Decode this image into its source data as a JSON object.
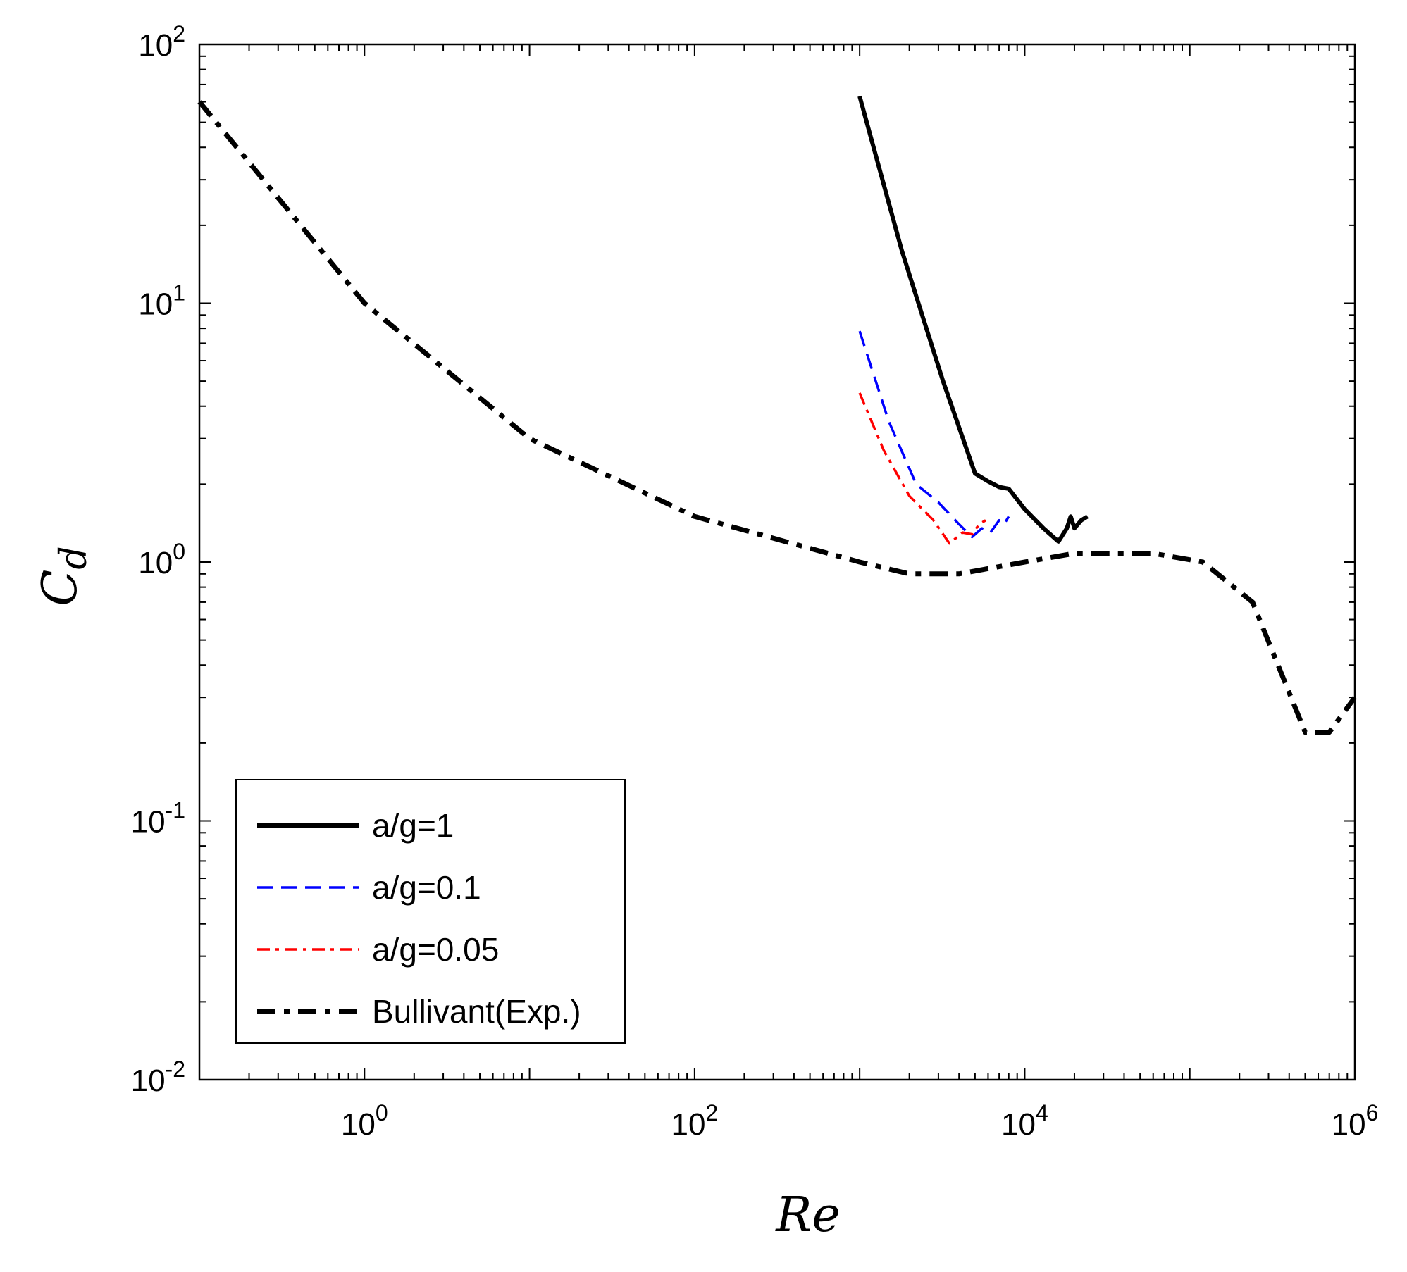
{
  "chart_data": {
    "type": "line",
    "title": "",
    "xlabel": "Re",
    "ylabel_base": "C",
    "ylabel_sub": "d",
    "xscale": "log",
    "yscale": "log",
    "xlim": [
      0.1,
      1000000
    ],
    "ylim": [
      0.01,
      100
    ],
    "grid": false,
    "legend_position": "bottom-left",
    "x_ticks": [
      {
        "value": 1,
        "base": "10",
        "exp": "0"
      },
      {
        "value": 100,
        "base": "10",
        "exp": "2"
      },
      {
        "value": 10000,
        "base": "10",
        "exp": "4"
      },
      {
        "value": 1000000,
        "base": "10",
        "exp": "6"
      }
    ],
    "y_ticks": [
      {
        "value": 0.01,
        "base": "10",
        "exp": "-2"
      },
      {
        "value": 0.1,
        "base": "10",
        "exp": "-1"
      },
      {
        "value": 1,
        "base": "10",
        "exp": "0"
      },
      {
        "value": 10,
        "base": "10",
        "exp": "1"
      },
      {
        "value": 100,
        "base": "10",
        "exp": "2"
      }
    ],
    "series": [
      {
        "name": "a/g=1",
        "color": "#000000",
        "style": "solid",
        "points": [
          [
            1000,
            63
          ],
          [
            1800,
            16
          ],
          [
            3200,
            5
          ],
          [
            5000,
            2.2
          ],
          [
            6000,
            2.05
          ],
          [
            7000,
            1.95
          ],
          [
            8000,
            1.92
          ],
          [
            10000,
            1.6
          ],
          [
            13000,
            1.35
          ],
          [
            16000,
            1.2
          ],
          [
            18000,
            1.35
          ],
          [
            19000,
            1.5
          ],
          [
            20000,
            1.35
          ],
          [
            22000,
            1.45
          ],
          [
            24000,
            1.5
          ]
        ]
      },
      {
        "name": "a/g=0.1",
        "color": "#0000ff",
        "style": "dashed",
        "points": [
          [
            1000,
            7.8
          ],
          [
            1500,
            3.5
          ],
          [
            2200,
            2.0
          ],
          [
            3000,
            1.7
          ],
          [
            4000,
            1.4
          ],
          [
            4800,
            1.25
          ],
          [
            5500,
            1.35
          ],
          [
            6200,
            1.3
          ],
          [
            7000,
            1.45
          ],
          [
            7500,
            1.4
          ],
          [
            8000,
            1.5
          ]
        ]
      },
      {
        "name": "a/g=0.05",
        "color": "#ff0000",
        "style": "dashdot",
        "points": [
          [
            1000,
            4.5
          ],
          [
            1400,
            2.7
          ],
          [
            2000,
            1.8
          ],
          [
            2800,
            1.45
          ],
          [
            3500,
            1.18
          ],
          [
            4200,
            1.3
          ],
          [
            4800,
            1.28
          ],
          [
            5300,
            1.4
          ],
          [
            5800,
            1.45
          ]
        ]
      },
      {
        "name": "Bullivant(Exp.)",
        "color": "#000000",
        "style": "dashdot-bold",
        "points": [
          [
            0.1,
            60
          ],
          [
            1,
            10
          ],
          [
            10,
            3
          ],
          [
            100,
            1.5
          ],
          [
            1000,
            1.0
          ],
          [
            2000,
            0.9
          ],
          [
            4000,
            0.9
          ],
          [
            10000,
            1.0
          ],
          [
            20000,
            1.08
          ],
          [
            60000,
            1.08
          ],
          [
            120000,
            1.0
          ],
          [
            240000,
            0.7
          ],
          [
            500000,
            0.22
          ],
          [
            700000,
            0.22
          ],
          [
            1000000,
            0.3
          ]
        ]
      }
    ]
  }
}
